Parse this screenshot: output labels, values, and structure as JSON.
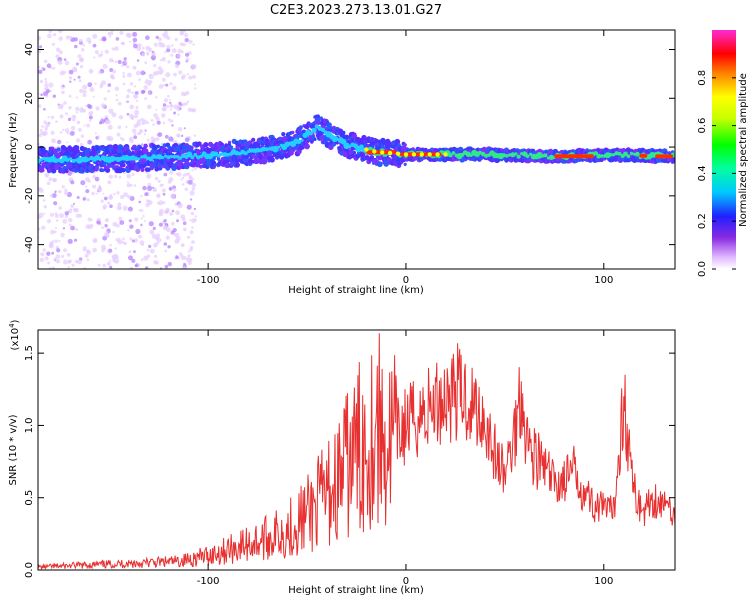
{
  "title": "C2E3.2023.273.13.01.G27",
  "chart_data": [
    {
      "type": "heatmap",
      "xlabel": "Height of straight line (km)",
      "ylabel": "Frequency (Hz)",
      "xlim": [
        -186,
        136
      ],
      "ylim": [
        -50,
        48
      ],
      "x_ticks": [
        -100,
        0,
        100
      ],
      "y_ticks": [
        -40,
        -20,
        0,
        20,
        40
      ],
      "colorbar": {
        "label": "Normalized spectral amplitude",
        "range": [
          0,
          1
        ],
        "ticks": [
          "0.0",
          "0.2",
          "0.4",
          "0.6",
          "0.8"
        ]
      },
      "ridge": [
        {
          "x": -186,
          "y": -5
        },
        {
          "x": -150,
          "y": -5
        },
        {
          "x": -120,
          "y": -4
        },
        {
          "x": -90,
          "y": -3
        },
        {
          "x": -70,
          "y": -1
        },
        {
          "x": -55,
          "y": 2
        },
        {
          "x": -45,
          "y": 8
        },
        {
          "x": -30,
          "y": 1
        },
        {
          "x": -15,
          "y": -2
        },
        {
          "x": 0,
          "y": -3
        },
        {
          "x": 40,
          "y": -3
        },
        {
          "x": 80,
          "y": -4
        },
        {
          "x": 100,
          "y": -3
        },
        {
          "x": 136,
          "y": -4
        }
      ]
    },
    {
      "type": "line",
      "xlabel": "Height of straight line (km)",
      "ylabel": "SNR (10 * v/v)",
      "y_scale_label": "(x10",
      "y_scale_exp": "4",
      "y_scale_close": ")",
      "xlim": [
        -186,
        136
      ],
      "ylim": [
        0,
        1.66
      ],
      "x_ticks": [
        -100,
        0,
        100
      ],
      "y_ticks": [
        "0.0",
        "0.5",
        "1.0",
        "1.5"
      ],
      "series": [
        {
          "color": "#e83030",
          "x": [
            -186,
            -170,
            -150,
            -130,
            -115,
            -100,
            -90,
            -80,
            -70,
            -60,
            -50,
            -40,
            -35,
            -30,
            -25,
            -20,
            -15,
            -10,
            -5,
            0,
            10,
            20,
            25,
            30,
            40,
            45,
            50,
            55,
            58,
            62,
            70,
            75,
            80,
            85,
            90,
            95,
            100,
            105,
            110,
            115,
            120,
            125,
            130,
            136
          ],
          "y": [
            0.02,
            0.03,
            0.04,
            0.05,
            0.06,
            0.1,
            0.14,
            0.18,
            0.22,
            0.28,
            0.38,
            0.52,
            0.6,
            0.72,
            0.82,
            0.88,
            1.02,
            0.85,
            0.92,
            1.0,
            1.1,
            1.2,
            1.24,
            1.2,
            1.05,
            0.8,
            0.65,
            0.95,
            1.26,
            0.85,
            0.7,
            0.6,
            0.62,
            0.68,
            0.55,
            0.45,
            0.42,
            0.4,
            1.2,
            0.55,
            0.4,
            0.5,
            0.45,
            0.4
          ]
        }
      ]
    }
  ]
}
